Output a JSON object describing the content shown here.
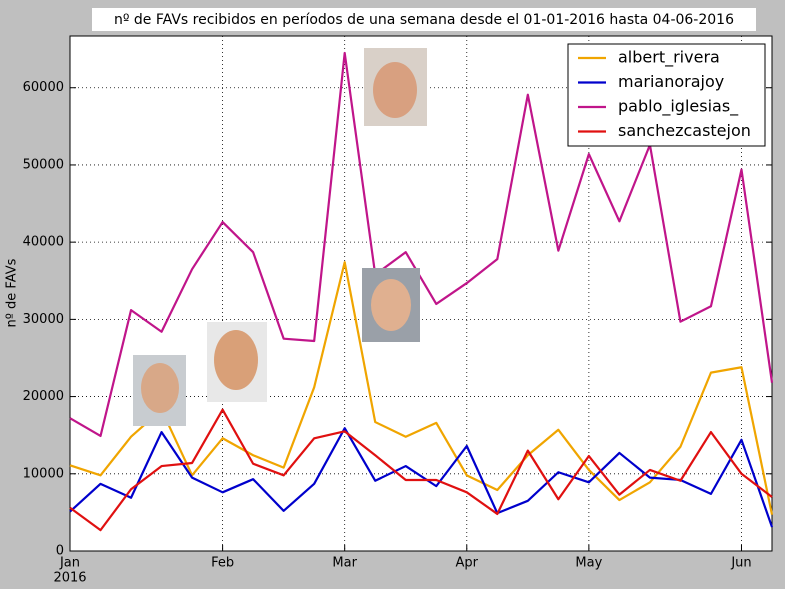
{
  "chart_data": {
    "type": "line",
    "title": "nº de FAVs recibidos en períodos de una semana desde el 01-01-2016 hasta 04-06-2016",
    "y_label": "nº de FAVs",
    "x_year_label": "2016",
    "categories": [
      "Jan",
      null,
      null,
      null,
      null,
      "Feb",
      null,
      null,
      null,
      "Mar",
      null,
      null,
      null,
      "Apr",
      null,
      null,
      null,
      "May",
      null,
      null,
      null,
      null,
      "Jun",
      null
    ],
    "series": [
      {
        "name": "albert_rivera",
        "color": "#f0a500",
        "values": [
          11100,
          9800,
          14800,
          18300,
          9800,
          14600,
          12400,
          10800,
          21200,
          37400,
          16700,
          14800,
          16600,
          9800,
          7900,
          12400,
          15700,
          10500,
          6600,
          8900,
          13500,
          23100,
          23800,
          4700
        ]
      },
      {
        "name": "marianorajoy",
        "color": "#0000cc",
        "values": [
          5100,
          8700,
          6900,
          15400,
          9500,
          7600,
          9300,
          5200,
          8700,
          15900,
          9100,
          11000,
          8400,
          13600,
          4900,
          6500,
          10200,
          8900,
          12700,
          9500,
          9200,
          7400,
          14400,
          3100
        ]
      },
      {
        "name": "pablo_iglesias_",
        "color": "#c0158a",
        "values": [
          17200,
          14900,
          31200,
          28400,
          36500,
          42600,
          38700,
          27500,
          27200,
          64500,
          35800,
          38700,
          32000,
          34700,
          37800,
          59100,
          38900,
          51400,
          42700,
          52600,
          29700,
          31700,
          49400,
          21800
        ]
      },
      {
        "name": "sanchezcastejon",
        "color": "#e01010",
        "values": [
          5600,
          2700,
          8000,
          11000,
          11400,
          18300,
          11300,
          9800,
          14600,
          15500,
          12400,
          9200,
          9200,
          7600,
          4800,
          13000,
          6700,
          12300,
          7300,
          10500,
          9100,
          15400,
          10000,
          7000
        ]
      }
    ],
    "ylim": [
      0,
      66700
    ],
    "yticks": [
      0,
      10000,
      20000,
      30000,
      40000,
      50000,
      60000
    ],
    "grid": true,
    "legend": "upper right"
  }
}
